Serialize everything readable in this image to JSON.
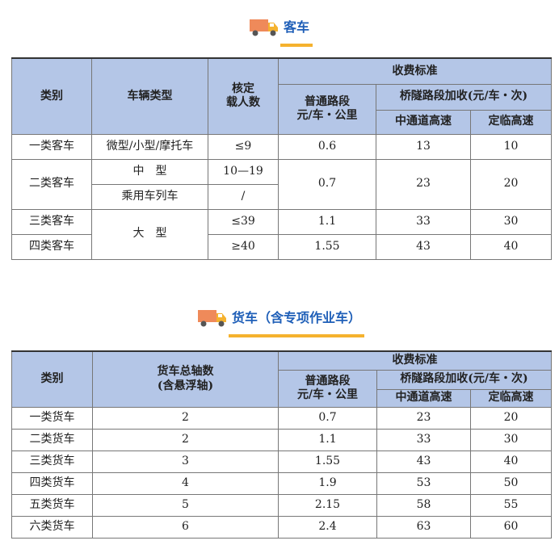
{
  "passenger": {
    "title": "客车",
    "headers": {
      "cls": "类别",
      "type": "车辆类型",
      "seats1": "核定",
      "seats2": "载人数",
      "fee": "收费标准",
      "normal1": "普通路段",
      "normal2": "元/车・公里",
      "bridge": "桥隧路段加收(元/车・次)",
      "zt": "中通道高速",
      "dl": "定临高速"
    },
    "rows": [
      {
        "cls": "一类客车",
        "type": "微型/小型/摩托车",
        "seats": "≤9",
        "normal": "0.6",
        "zt": "13",
        "dl": "10"
      },
      {
        "cls": "二类客车",
        "type": "中　型",
        "seats": "10—19",
        "type2": "乘用车列车",
        "seats2": "/",
        "normal": "0.7",
        "zt": "23",
        "dl": "20"
      },
      {
        "cls": "三类客车",
        "type": "大　型",
        "seats": "≤39",
        "normal": "1.1",
        "zt": "33",
        "dl": "30"
      },
      {
        "cls": "四类客车",
        "seats": "≥40",
        "normal": "1.55",
        "zt": "43",
        "dl": "40"
      }
    ]
  },
  "truck": {
    "title": "货车（含专项作业车）",
    "headers": {
      "cls": "类别",
      "axles1": "货车总轴数",
      "axles2": "(含悬浮轴)",
      "fee": "收费标准",
      "normal1": "普通路段",
      "normal2": "元/车・公里",
      "bridge": "桥隧路段加收(元/车・次)",
      "zt": "中通道高速",
      "dl": "定临高速"
    },
    "rows": [
      {
        "cls": "一类货车",
        "axles": "2",
        "normal": "0.7",
        "zt": "23",
        "dl": "20"
      },
      {
        "cls": "二类货车",
        "axles": "2",
        "normal": "1.1",
        "zt": "33",
        "dl": "30"
      },
      {
        "cls": "三类货车",
        "axles": "3",
        "normal": "1.55",
        "zt": "43",
        "dl": "40"
      },
      {
        "cls": "四类货车",
        "axles": "4",
        "normal": "1.9",
        "zt": "53",
        "dl": "50"
      },
      {
        "cls": "五类货车",
        "axles": "5",
        "normal": "2.15",
        "zt": "58",
        "dl": "55"
      },
      {
        "cls": "六类货车",
        "axles": "6",
        "normal": "2.4",
        "zt": "63",
        "dl": "60"
      }
    ]
  },
  "colors": {
    "header_bg": "#b4c6e7",
    "title": "#1f5fb8",
    "underline": "#f5b22e"
  }
}
